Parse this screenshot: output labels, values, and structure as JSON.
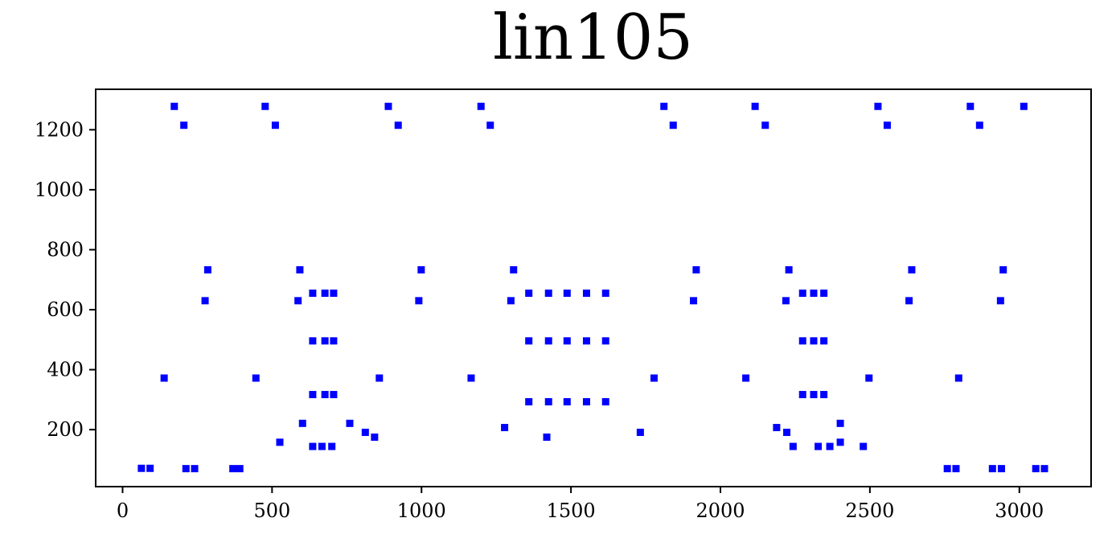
{
  "chart_data": {
    "type": "scatter",
    "title": "lin105",
    "xlabel": "",
    "ylabel": "",
    "xlim": [
      -90,
      3240
    ],
    "ylim": [
      10,
      1335
    ],
    "xticks": [
      0,
      500,
      1000,
      1500,
      2000,
      2500,
      3000
    ],
    "yticks": [
      200,
      400,
      600,
      800,
      1000,
      1200
    ],
    "grid": false,
    "marker_color": "#0000ff",
    "series": [
      {
        "points": [
          [
            63,
            71
          ],
          [
            92,
            71
          ],
          [
            173,
            1278
          ],
          [
            205,
            1215
          ],
          [
            212,
            70
          ],
          [
            241,
            70
          ],
          [
            369,
            70
          ],
          [
            392,
            70
          ],
          [
            477,
            1278
          ],
          [
            511,
            1215
          ],
          [
            139,
            372
          ],
          [
            276,
            630
          ],
          [
            285,
            733
          ],
          [
            446,
            372
          ],
          [
            526,
            158
          ],
          [
            587,
            630
          ],
          [
            593,
            733
          ],
          [
            602,
            221
          ],
          [
            636,
            655
          ],
          [
            636,
            496
          ],
          [
            636,
            317
          ],
          [
            636,
            144
          ],
          [
            667,
            144
          ],
          [
            677,
            655
          ],
          [
            677,
            496
          ],
          [
            677,
            317
          ],
          [
            706,
            655
          ],
          [
            706,
            496
          ],
          [
            706,
            317
          ],
          [
            700,
            144
          ],
          [
            760,
            221
          ],
          [
            812,
            191
          ],
          [
            843,
            175
          ],
          [
            859,
            372
          ],
          [
            889,
            1278
          ],
          [
            922,
            1215
          ],
          [
            991,
            630
          ],
          [
            999,
            733
          ],
          [
            1166,
            372
          ],
          [
            1199,
            1278
          ],
          [
            1230,
            1215
          ],
          [
            1278,
            207
          ],
          [
            1299,
            630
          ],
          [
            1308,
            733
          ],
          [
            1359,
            655
          ],
          [
            1359,
            496
          ],
          [
            1359,
            293
          ],
          [
            1419,
            175
          ],
          [
            1425,
            655
          ],
          [
            1425,
            496
          ],
          [
            1425,
            293
          ],
          [
            1487,
            655
          ],
          [
            1487,
            496
          ],
          [
            1487,
            293
          ],
          [
            1552,
            655
          ],
          [
            1552,
            496
          ],
          [
            1552,
            293
          ],
          [
            1616,
            655
          ],
          [
            1616,
            496
          ],
          [
            1616,
            293
          ],
          [
            1732,
            191
          ],
          [
            1778,
            372
          ],
          [
            1811,
            1278
          ],
          [
            1842,
            1215
          ],
          [
            1910,
            630
          ],
          [
            1919,
            733
          ],
          [
            2085,
            372
          ],
          [
            2116,
            1278
          ],
          [
            2150,
            1215
          ],
          [
            2188,
            207
          ],
          [
            2219,
            630
          ],
          [
            2222,
            191
          ],
          [
            2229,
            733
          ],
          [
            2243,
            144
          ],
          [
            2275,
            655
          ],
          [
            2275,
            496
          ],
          [
            2275,
            317
          ],
          [
            2312,
            655
          ],
          [
            2312,
            496
          ],
          [
            2312,
            317
          ],
          [
            2327,
            144
          ],
          [
            2346,
            655
          ],
          [
            2346,
            496
          ],
          [
            2346,
            317
          ],
          [
            2366,
            144
          ],
          [
            2401,
            221
          ],
          [
            2401,
            158
          ],
          [
            2478,
            144
          ],
          [
            2497,
            372
          ],
          [
            2527,
            1278
          ],
          [
            2558,
            1215
          ],
          [
            2631,
            630
          ],
          [
            2640,
            733
          ],
          [
            2759,
            70
          ],
          [
            2788,
            70
          ],
          [
            2797,
            372
          ],
          [
            2836,
            1278
          ],
          [
            2867,
            1215
          ],
          [
            2910,
            70
          ],
          [
            2937,
            630
          ],
          [
            2940,
            70
          ],
          [
            2946,
            733
          ],
          [
            3015,
            1278
          ],
          [
            3055,
            70
          ],
          [
            3084,
            70
          ]
        ]
      }
    ]
  }
}
